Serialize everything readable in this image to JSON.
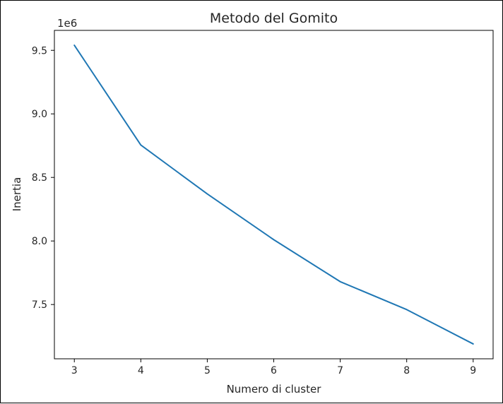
{
  "chart_data": {
    "type": "line",
    "title": "Metodo del Gomito",
    "xlabel": "Numero di cluster",
    "ylabel": "Inertia",
    "y_scale_label": "1e6",
    "x": [
      3,
      4,
      5,
      6,
      7,
      8,
      9
    ],
    "series": [
      {
        "values": [
          9.54,
          8.755,
          8.37,
          8.01,
          7.68,
          7.46,
          7.19
        ],
        "color": "#1f77b4"
      }
    ],
    "x_ticks": [
      3,
      4,
      5,
      6,
      7,
      8,
      9
    ],
    "x_tick_labels": [
      "3",
      "4",
      "5",
      "6",
      "7",
      "8",
      "9"
    ],
    "y_ticks": [
      7.5,
      8.0,
      8.5,
      9.0,
      9.5
    ],
    "y_tick_labels": [
      "7.5",
      "8.0",
      "8.5",
      "9.0",
      "9.5"
    ],
    "xlim": [
      2.7,
      9.3
    ],
    "ylim": [
      7.073,
      9.657
    ],
    "grid": false,
    "legend": "none"
  }
}
